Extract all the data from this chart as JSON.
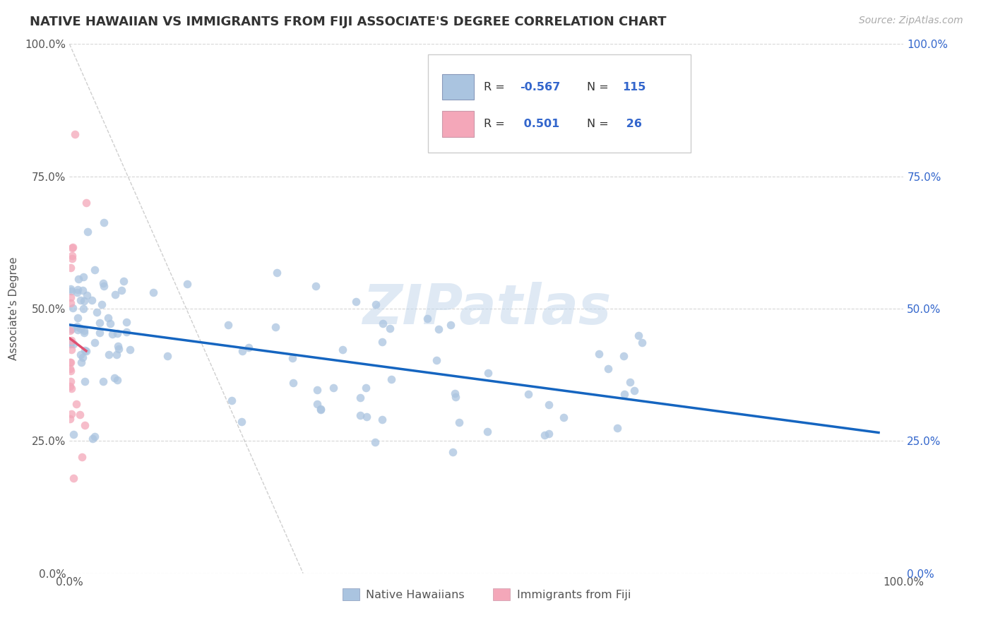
{
  "title": "NATIVE HAWAIIAN VS IMMIGRANTS FROM FIJI ASSOCIATE'S DEGREE CORRELATION CHART",
  "source": "Source: ZipAtlas.com",
  "ylabel": "Associate's Degree",
  "xlim": [
    0.0,
    1.0
  ],
  "ylim": [
    0.0,
    1.0
  ],
  "x_tick_labels": [
    "0.0%",
    "100.0%"
  ],
  "x_tick_positions": [
    0.0,
    1.0
  ],
  "y_tick_labels": [
    "0.0%",
    "25.0%",
    "50.0%",
    "75.0%",
    "100.0%"
  ],
  "y_tick_positions": [
    0.0,
    0.25,
    0.5,
    0.75,
    1.0
  ],
  "color_blue": "#aac4e0",
  "color_pink": "#f4a7b9",
  "line_blue": "#1565c0",
  "line_pink": "#e05070",
  "watermark_text": "ZIPatlas",
  "background": "#ffffff",
  "grid_color": "#cccccc",
  "title_color": "#333333",
  "source_color": "#aaaaaa",
  "legend_text_color": "#3366cc",
  "legend_label_color": "#333333",
  "r1": "-0.567",
  "n1": "115",
  "r2": "0.501",
  "n2": "26",
  "legend_label1": "Native Hawaiians",
  "legend_label2": "Immigrants from Fiji"
}
